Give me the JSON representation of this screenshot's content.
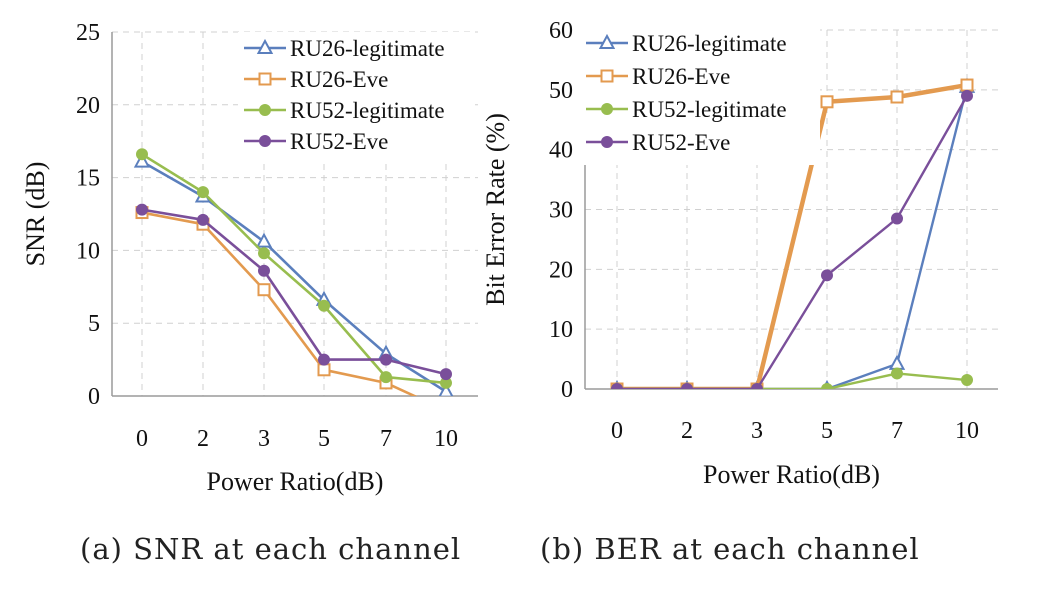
{
  "colors": {
    "RU26-legitimate": "#5b7fbd",
    "RU26-Eve": "#e39a4f",
    "RU52-legitimate": "#98bd4f",
    "RU52-Eve": "#7a4f9a"
  },
  "captions": {
    "a": "(a) SNR at each channel",
    "b": "(b) BER at each channel"
  },
  "chart_data": [
    {
      "type": "line",
      "categories": [
        "0",
        "2",
        "3",
        "5",
        "7",
        "10"
      ],
      "xlabel": "Power Ratio(dB)",
      "ylabel": "SNR (dB)",
      "ylim": [
        0,
        25
      ],
      "yticks": [
        0,
        5,
        10,
        15,
        20,
        25
      ],
      "grid": true,
      "legend": "top-right",
      "series": [
        {
          "name": "RU26-legitimate",
          "marker": "triangle",
          "values": [
            16.1,
            13.7,
            10.6,
            6.6,
            2.9,
            0.3
          ]
        },
        {
          "name": "RU26-Eve",
          "marker": "square",
          "values": [
            12.6,
            11.8,
            7.3,
            1.8,
            0.9,
            -1.0
          ]
        },
        {
          "name": "RU52-legitimate",
          "marker": "circle",
          "values": [
            16.6,
            14.0,
            9.8,
            6.2,
            1.3,
            0.9
          ]
        },
        {
          "name": "RU52-Eve",
          "marker": "circle",
          "values": [
            12.8,
            12.1,
            8.6,
            2.5,
            2.5,
            1.5
          ]
        }
      ]
    },
    {
      "type": "line",
      "categories": [
        "0",
        "2",
        "3",
        "5",
        "7",
        "10"
      ],
      "xlabel": "Power Ratio(dB)",
      "ylabel": "Bit Error Rate (%)",
      "ylim": [
        0,
        60
      ],
      "yticks": [
        0,
        10,
        20,
        30,
        40,
        50,
        60
      ],
      "grid": true,
      "legend": "top-left",
      "series": [
        {
          "name": "RU26-legitimate",
          "marker": "triangle",
          "values": [
            0,
            0,
            0,
            0,
            4.2,
            50.5
          ]
        },
        {
          "name": "RU26-Eve",
          "marker": "square",
          "values": [
            0,
            0,
            0,
            48.0,
            48.8,
            50.8
          ]
        },
        {
          "name": "RU52-legitimate",
          "marker": "circle",
          "values": [
            0,
            0,
            0,
            0,
            2.6,
            1.5
          ]
        },
        {
          "name": "RU52-Eve",
          "marker": "circle",
          "values": [
            0,
            0,
            0,
            19.0,
            28.5,
            49.0
          ]
        }
      ]
    }
  ]
}
